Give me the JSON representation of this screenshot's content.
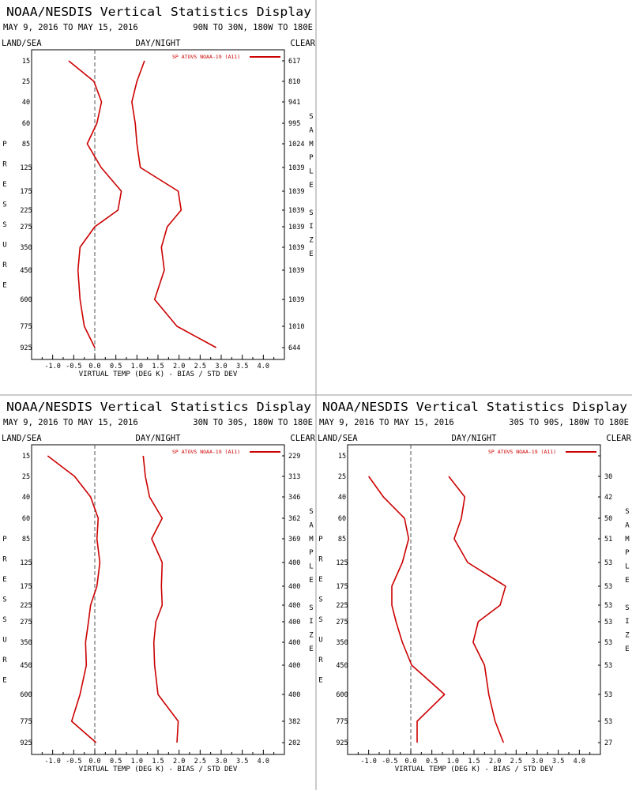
{
  "pressure_levels": [
    "15",
    "25",
    "40",
    "60",
    "85",
    "125",
    "175",
    "225",
    "275",
    "350",
    "450",
    "600",
    "775",
    "925"
  ],
  "x_ticks": [
    "-1.0",
    "-0.5",
    "0.0",
    "0.5",
    "1.0",
    "1.5",
    "2.0",
    "2.5",
    "3.0",
    "3.5",
    "4.0"
  ],
  "colors": {
    "series": "#cc0000",
    "axis": "#000000",
    "zero_line": "#555555",
    "separator": "#9a9a9a"
  },
  "panels": [
    {
      "title": "NOAA/NESDIS Vertical Statistics Display",
      "date_range": "MAY 9, 2016 TO MAY 15, 2016",
      "region": "90N TO 30N, 180W TO 180E",
      "left_header": "LAND/SEA",
      "center_header": "DAY/NIGHT",
      "right_header": "CLEAR",
      "legend": "SP ATOVS NOAA-19 (A11)",
      "y_label": [
        "P",
        "R",
        "E",
        "S",
        "S",
        "U",
        "R",
        "E"
      ],
      "right_label": [
        "S",
        "A",
        "M",
        "P",
        "L",
        "E",
        "",
        "S",
        "I",
        "Z",
        "E"
      ],
      "xlabel": "VIRTUAL TEMP (DEG K) - BIAS / STD DEV",
      "sample_sizes": [
        "617",
        "810",
        "941",
        "995",
        "1024",
        "1039",
        "1039",
        "1039",
        "1039",
        "1039",
        "1039",
        "1039",
        "1010",
        "644"
      ],
      "chart_data": {
        "type": "line",
        "x_range": [
          -1.5,
          4.5
        ],
        "y": [
          "15",
          "25",
          "40",
          "60",
          "85",
          "125",
          "175",
          "225",
          "275",
          "350",
          "450",
          "600",
          "775",
          "925"
        ],
        "series": [
          {
            "values": [
              -0.62,
              -0.02,
              0.16,
              0.05,
              -0.18,
              0.15,
              0.63,
              0.55,
              0.0,
              -0.35,
              -0.4,
              -0.35,
              -0.25,
              0.0
            ]
          },
          {
            "values": [
              1.18,
              1.0,
              0.88,
              0.96,
              1.0,
              1.08,
              1.98,
              2.05,
              1.72,
              1.58,
              1.65,
              1.42,
              1.95,
              2.88
            ]
          }
        ]
      }
    },
    {
      "title": "NOAA/NESDIS Vertical Statistics Display",
      "date_range": "MAY 9, 2016 TO MAY 15, 2016",
      "region": "30N TO 30S, 180W TO 180E",
      "left_header": "LAND/SEA",
      "center_header": "DAY/NIGHT",
      "right_header": "CLEAR",
      "legend": "SP ATOVS NOAA-19 (A11)",
      "y_label": [
        "P",
        "R",
        "E",
        "S",
        "S",
        "U",
        "R",
        "E"
      ],
      "right_label": [
        "S",
        "A",
        "M",
        "P",
        "L",
        "E",
        "",
        "S",
        "I",
        "Z",
        "E"
      ],
      "xlabel": "VIRTUAL TEMP (DEG K) - BIAS / STD DEV",
      "sample_sizes": [
        "229",
        "313",
        "346",
        "362",
        "369",
        "400",
        "400",
        "400",
        "400",
        "400",
        "400",
        "400",
        "382",
        "202"
      ],
      "chart_data": {
        "type": "line",
        "x_range": [
          -1.5,
          4.5
        ],
        "y": [
          "15",
          "25",
          "40",
          "60",
          "85",
          "125",
          "175",
          "225",
          "275",
          "350",
          "450",
          "600",
          "775",
          "925"
        ],
        "series": [
          {
            "values": [
              -1.12,
              -0.48,
              -0.1,
              0.08,
              0.05,
              0.12,
              0.05,
              -0.1,
              -0.15,
              -0.22,
              -0.2,
              -0.35,
              -0.55,
              0.03
            ]
          },
          {
            "values": [
              1.15,
              1.2,
              1.3,
              1.6,
              1.35,
              1.6,
              1.58,
              1.6,
              1.45,
              1.4,
              1.42,
              1.5,
              1.98,
              1.95
            ]
          }
        ]
      }
    },
    {
      "title": "NOAA/NESDIS Vertical Statistics Display",
      "date_range": "MAY 9, 2016 TO MAY 15, 2016",
      "region": "30S TO 90S, 180W TO 180E",
      "left_header": "LAND/SEA",
      "center_header": "DAY/NIGHT",
      "right_header": "CLEAR",
      "legend": "SP ATOVS NOAA-19 (A11)",
      "y_label": [
        "P",
        "R",
        "E",
        "S",
        "S",
        "U",
        "R",
        "E"
      ],
      "right_label": [
        "S",
        "A",
        "M",
        "P",
        "L",
        "E",
        "",
        "S",
        "I",
        "Z",
        "E"
      ],
      "xlabel": "VIRTUAL TEMP (DEG K) - BIAS / STD DEV",
      "sample_sizes": [
        "",
        "30",
        "42",
        "50",
        "51",
        "53",
        "53",
        "53",
        "53",
        "53",
        "53",
        "53",
        "53",
        "27"
      ],
      "chart_data": {
        "type": "line",
        "x_range": [
          -1.5,
          4.5
        ],
        "y": [
          "25",
          "40",
          "60",
          "85",
          "125",
          "175",
          "225",
          "275",
          "350",
          "450",
          "600",
          "775",
          "925"
        ],
        "series": [
          {
            "values": [
              -1.0,
              -0.65,
              -0.15,
              -0.05,
              -0.2,
              -0.45,
              -0.45,
              -0.35,
              -0.2,
              0.02,
              0.8,
              0.15,
              0.15
            ]
          },
          {
            "values": [
              0.9,
              1.28,
              1.2,
              1.03,
              1.35,
              2.25,
              2.12,
              1.6,
              1.48,
              1.75,
              1.85,
              2.0,
              2.2
            ]
          }
        ]
      }
    }
  ]
}
